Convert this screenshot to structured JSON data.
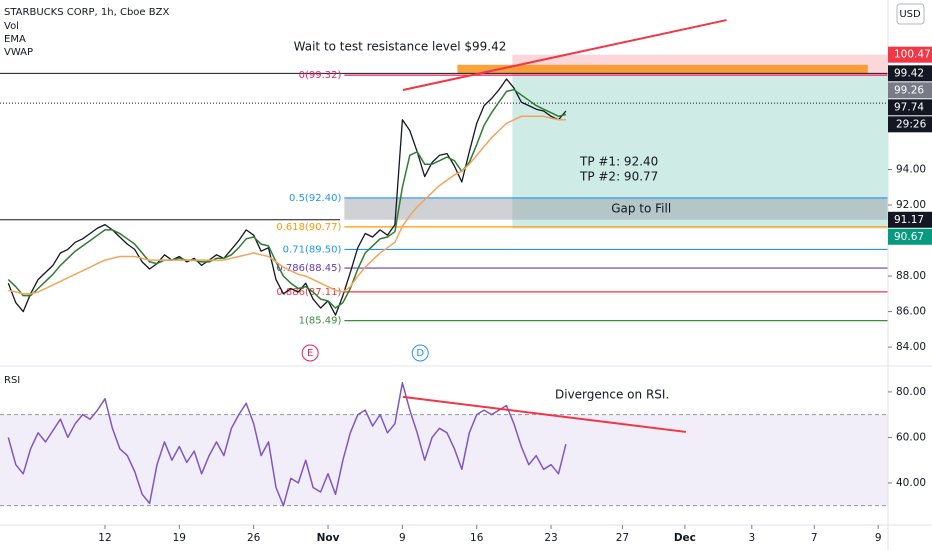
{
  "chart_data": {
    "type": "line",
    "title": "STARBUCKS CORP, 1h, Cboe BZX",
    "indicators_label": "Vol",
    "currency": "USD",
    "x": [
      -1.5,
      -1,
      -0.5,
      0,
      0.5,
      1,
      1.5,
      2,
      2.5,
      3,
      3.5,
      4,
      4.5,
      5,
      5.5,
      6,
      6.5,
      7,
      7.5,
      8,
      8.5,
      9,
      9.5,
      10,
      10.5,
      11,
      11.5,
      12,
      12.5,
      13,
      13.5,
      14,
      14.5,
      15,
      15.5,
      16,
      16.5,
      17,
      17.5,
      18,
      18.5,
      19,
      19.5,
      20,
      20.5,
      21,
      21.5,
      22,
      22.5,
      23,
      23.5,
      24,
      24.5,
      25,
      25.5,
      26,
      26.5,
      27,
      27.5,
      28,
      28.5,
      29,
      29.5,
      30,
      30.5,
      31,
      31.5,
      32,
      32.5,
      33,
      33.5,
      34,
      34.5,
      35,
      35.5,
      36
    ],
    "xlim": [
      -2.06,
      57.66
    ],
    "xticks": [
      {
        "value": 5,
        "label": "12"
      },
      {
        "value": 10,
        "label": "19"
      },
      {
        "value": 15,
        "label": "26"
      },
      {
        "value": 20,
        "label": "Nov"
      },
      {
        "value": 25,
        "label": "9"
      },
      {
        "value": 30,
        "label": "16"
      },
      {
        "value": 35,
        "label": "23"
      },
      {
        "value": 39.8,
        "label": "27"
      },
      {
        "value": 44,
        "label": "Dec"
      },
      {
        "value": 48.5,
        "label": "3"
      },
      {
        "value": 52.7,
        "label": "7"
      },
      {
        "value": 57,
        "label": "9"
      }
    ],
    "ylim": [
      82.99,
      103.55
    ],
    "yticks": [
      {
        "value": 84,
        "label": "84.00"
      },
      {
        "value": 86,
        "label": "86.00"
      },
      {
        "value": 88,
        "label": "88.00"
      },
      {
        "value": 92,
        "label": "92.00"
      },
      {
        "value": 94,
        "label": "94.00"
      }
    ],
    "y2lim": [
      21.5,
      90.5
    ],
    "y2ticks": [
      {
        "value": 40,
        "label": "40.00"
      },
      {
        "value": 60,
        "label": "60.00"
      },
      {
        "value": 80,
        "label": "80.00"
      }
    ],
    "rsi_bands": [
      30,
      70
    ],
    "series": [
      {
        "color": "#131722",
        "values": [
          87.6,
          86.5,
          86.0,
          87.0,
          87.8,
          88.2,
          88.6,
          89.3,
          89.5,
          89.9,
          90.1,
          90.4,
          90.7,
          90.9,
          90.6,
          90.2,
          89.8,
          89.5,
          88.8,
          88.4,
          88.7,
          89.2,
          88.9,
          89.1,
          88.8,
          89.0,
          88.6,
          88.9,
          89.2,
          89.0,
          89.5,
          90.0,
          90.6,
          90.3,
          89.4,
          89.6,
          87.8,
          87.0,
          87.3,
          87.1,
          87.6,
          86.7,
          86.2,
          86.6,
          85.8,
          86.9,
          88.2,
          89.6,
          90.4,
          90.2,
          90.6,
          90.3,
          90.9,
          96.8,
          96.2,
          95.0,
          93.6,
          94.4,
          94.8,
          94.9,
          94.2,
          93.3,
          95.0,
          96.6,
          97.6,
          98.0,
          98.5,
          99.1,
          98.6,
          97.8,
          97.6,
          97.4,
          97.3,
          97.0,
          96.8,
          97.3
        ]
      },
      {
        "name": "EMA",
        "color": "#2e7d32",
        "values": [
          87.8,
          87.4,
          86.9,
          86.9,
          87.3,
          87.7,
          88.1,
          88.6,
          89.0,
          89.4,
          89.7,
          90.0,
          90.3,
          90.6,
          90.6,
          90.4,
          90.1,
          89.8,
          89.3,
          88.8,
          88.7,
          88.9,
          88.9,
          89.0,
          88.9,
          88.9,
          88.8,
          88.8,
          89.0,
          89.0,
          89.2,
          89.6,
          90.1,
          90.2,
          89.8,
          89.7,
          88.8,
          88.0,
          87.6,
          87.3,
          87.4,
          87.1,
          86.7,
          86.6,
          86.2,
          86.5,
          87.3,
          88.4,
          89.3,
          89.7,
          90.1,
          90.2,
          90.5,
          93.0,
          94.8,
          95.0,
          94.3,
          94.3,
          94.5,
          94.7,
          94.5,
          93.9,
          94.4,
          95.4,
          96.5,
          97.2,
          97.8,
          98.4,
          98.5,
          98.2,
          97.9,
          97.6,
          97.4,
          97.2,
          97.0,
          97.1
        ]
      },
      {
        "name": "VWAP",
        "color": "#f5a35a",
        "values": [
          87.2,
          87.1,
          87.0,
          87.0,
          87.1,
          87.3,
          87.5,
          87.7,
          87.9,
          88.1,
          88.3,
          88.5,
          88.7,
          88.9,
          89.0,
          89.1,
          89.1,
          89.1,
          89.0,
          88.9,
          88.9,
          88.9,
          88.9,
          88.9,
          88.9,
          88.9,
          88.9,
          88.9,
          88.9,
          88.9,
          89.0,
          89.1,
          89.2,
          89.3,
          89.2,
          89.1,
          88.8,
          88.5,
          88.3,
          88.1,
          88.0,
          87.8,
          87.6,
          87.4,
          87.2,
          87.1,
          87.4,
          88.0,
          88.5,
          88.9,
          89.3,
          89.6,
          89.9,
          90.8,
          91.4,
          91.9,
          92.3,
          92.7,
          93.1,
          93.4,
          93.7,
          93.9,
          94.3,
          94.8,
          95.3,
          95.8,
          96.2,
          96.6,
          96.8,
          97.0,
          97.0,
          97.0,
          97.0,
          96.9,
          96.8,
          96.8
        ]
      },
      {
        "name": "RSI",
        "axis": "y2",
        "color": "#7e57c2",
        "values": [
          60,
          48,
          44,
          55,
          62,
          58,
          63,
          68,
          60,
          66,
          70,
          68,
          72,
          77,
          64,
          55,
          52,
          45,
          35,
          31,
          48,
          58,
          50,
          56,
          49,
          54,
          44,
          52,
          58,
          52,
          64,
          70,
          75,
          66,
          52,
          58,
          38,
          30,
          42,
          40,
          50,
          38,
          36,
          44,
          35,
          50,
          62,
          70,
          72,
          65,
          70,
          62,
          66,
          84,
          72,
          62,
          50,
          60,
          64,
          62,
          55,
          46,
          62,
          70,
          72,
          70,
          72,
          74,
          66,
          56,
          48,
          52,
          46,
          48,
          44,
          57
        ]
      }
    ],
    "levels": [
      {
        "value": 99.42,
        "color": "#131722",
        "style": "solid",
        "from": -2.06
      },
      {
        "value": 97.74,
        "color": "#131722",
        "style": "dotted",
        "from": -2.06
      },
      {
        "value": 91.17,
        "color": "#131722",
        "style": "solid",
        "from": -2.06,
        "to": 20.8
      }
    ],
    "fib_start": 21.1,
    "fib_levels": [
      {
        "label": "0(99.32)",
        "value": 99.32,
        "color": "#e91e63"
      },
      {
        "label": "0.5(92.40)",
        "value": 92.4,
        "color": "#2196f3"
      },
      {
        "label": "0.618(90.77)",
        "value": 90.77,
        "color": "#ff9800"
      },
      {
        "label": "0.71(89.50)",
        "value": 89.5,
        "color": "#2196f3"
      },
      {
        "label": "0.786(88.45)",
        "value": 88.45,
        "color": "#673ab7"
      },
      {
        "label": "0.886(87.11)",
        "value": 87.11,
        "color": "#f23645"
      },
      {
        "label": "1(85.49)",
        "value": 85.49,
        "color": "#388e3c"
      }
    ],
    "position": {
      "start": 32.4,
      "entry": 99.26,
      "stop": 100.47,
      "target": 90.67
    },
    "zone": {
      "from": 28.7,
      "to": 56.3,
      "low": 99.42,
      "high": 99.9,
      "color": "#f7931a"
    },
    "gap": {
      "from": 21.1,
      "low": 91.17,
      "high": 92.4,
      "label": "Gap to Fill"
    },
    "price_labels": [
      {
        "value": 100.47,
        "bg": "#f23645"
      },
      {
        "value": 99.42,
        "bg": "#131722"
      },
      {
        "value": 99.26,
        "bg": "#787b86"
      },
      {
        "value": 97.74,
        "bg": "#131722"
      },
      {
        "value": 91.17,
        "bg": "#131722"
      },
      {
        "value": 90.67,
        "bg": "#089981"
      }
    ],
    "countdown": "29:26",
    "trend_lines": [
      {
        "axis": "y",
        "x": [
          25.04,
          46.8
        ],
        "y": [
          98.48,
          102.42
        ]
      },
      {
        "axis": "y2",
        "x": [
          25.04,
          44.07
        ],
        "y": [
          77.8,
          62.4
        ]
      }
    ],
    "events": [
      {
        "label": "E",
        "x": 18.8,
        "color": "#e91e63"
      },
      {
        "label": "D",
        "x": 26.2,
        "color": "#2196f3"
      }
    ],
    "annotations": {
      "resistance": "Wait to test resistance level $99.42",
      "tp1": "TP #1: 92.40",
      "tp2": "TP #2: 90.77",
      "divergence": "Divergence on RSI."
    }
  }
}
